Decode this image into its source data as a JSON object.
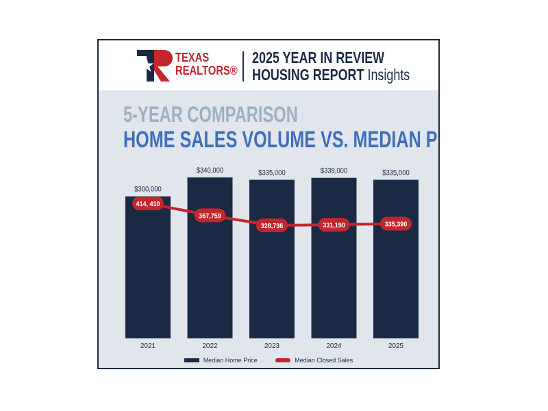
{
  "brand": {
    "line1": "TEXAS",
    "line2": "REALTORS®"
  },
  "header": {
    "title_line1": "2025 YEAR IN REVIEW",
    "title_line2": "HOUSING REPORT",
    "title_suffix": "Insights"
  },
  "headline": {
    "line1": "5-YEAR COMPARISON",
    "line2": "HOME SALES VOLUME VS. MEDIAN PRICE"
  },
  "colors": {
    "navy": "#1b2a44",
    "red": "#c2262e",
    "panel": "#e1e5ec",
    "headline_grey": "#9eb0c2",
    "headline_blue": "#3f6fb8"
  },
  "chart_data": {
    "type": "bar",
    "categories": [
      "2021",
      "2022",
      "2023",
      "2024",
      "2025"
    ],
    "series": [
      {
        "name": "Median Home Price",
        "type": "bar",
        "values": [
          300000,
          340000,
          335000,
          339000,
          335000
        ],
        "labels": [
          "$300,000",
          "$340,000",
          "$335,000",
          "$339,000",
          "$335,000"
        ]
      },
      {
        "name": "Median Closed Sales",
        "type": "line",
        "values": [
          414410,
          367759,
          328736,
          331190,
          335390
        ],
        "labels": [
          "414, 410",
          "367,759",
          "328,736",
          "331,190",
          "335,390"
        ]
      }
    ],
    "legend": "bottom",
    "grid": false
  }
}
